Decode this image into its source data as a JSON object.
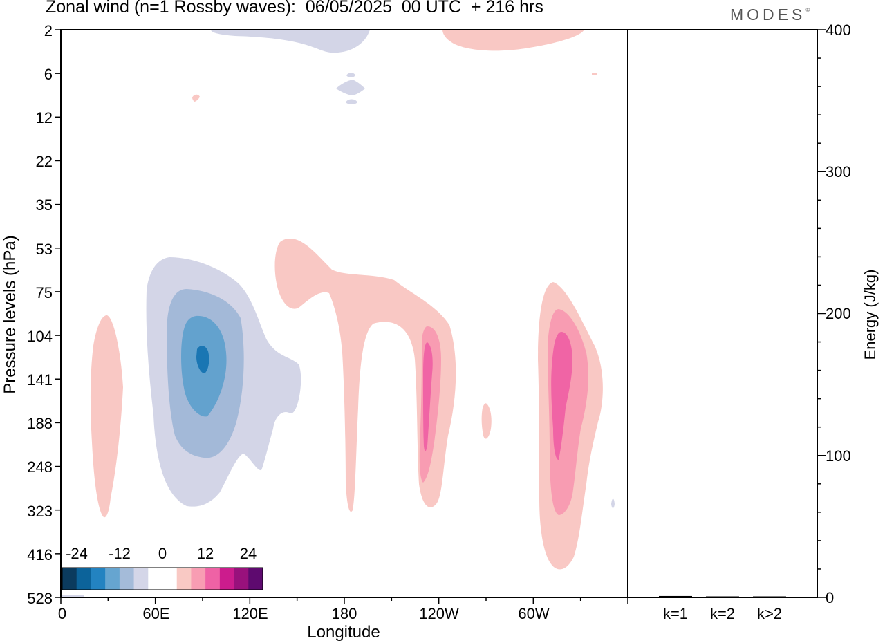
{
  "title": "Zonal wind (n=1 Rossby waves):  06/05/2025  00 UTC  + 216 hrs",
  "brand": "MODES",
  "brand_mark": "©",
  "colors": {
    "blue_1": "#d3d5e7",
    "blue_2": "#a3b9d8",
    "blue_3": "#63a2ce",
    "blue_4": "#1a76b3",
    "red_1": "#f9c8c4",
    "red_2": "#f89cb2",
    "red_3": "#f064a5"
  },
  "chart_data": [
    {
      "type": "heatmap",
      "xlabel": "Longitude",
      "ylabel": "Pressure levels (hPa)",
      "x_tick_labels": [
        "0",
        "60E",
        "120E",
        "180",
        "120W",
        "60W"
      ],
      "y_tick_labels": [
        "2",
        "6",
        "12",
        "22",
        "35",
        "53",
        "75",
        "104",
        "141",
        "188",
        "248",
        "323",
        "416",
        "528"
      ],
      "colorbar": {
        "tick_labels": [
          "-24",
          "-12",
          "0",
          "12",
          "24"
        ],
        "colors": [
          "#0b3b5e",
          "#0c639a",
          "#2383c1",
          "#66a5d0",
          "#a4bbd9",
          "#d4d6e8",
          "#ffffff",
          "#ffffff",
          "#f9c9c4",
          "#f89db3",
          "#ef62a5",
          "#cc1c8d",
          "#99117c",
          "#5e0a6f"
        ]
      }
    },
    {
      "type": "bar",
      "categories": [
        "k=1",
        "k=2",
        "k>2"
      ],
      "values": [
        1,
        0.5,
        0.5
      ],
      "ylabel": "Energy (J/kg)",
      "y_tick_labels": [
        "0",
        "100",
        "200",
        "300",
        "400"
      ],
      "ylim": [
        0,
        400
      ]
    }
  ]
}
